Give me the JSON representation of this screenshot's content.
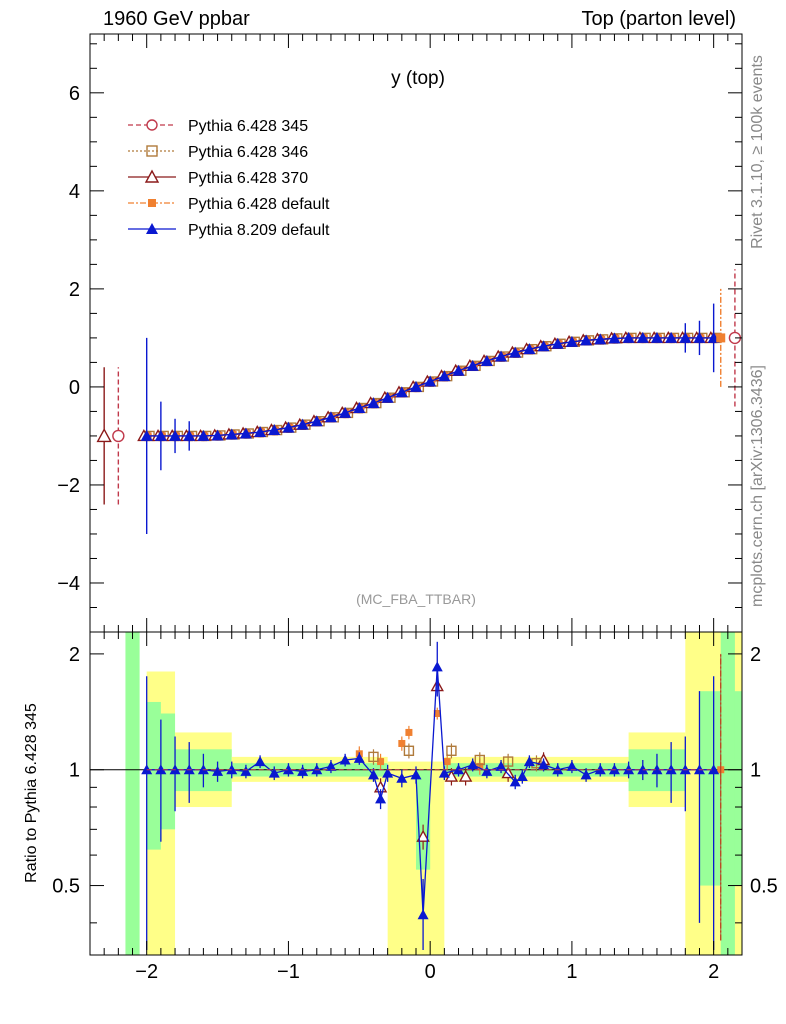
{
  "header": {
    "left": "1960 GeV ppbar",
    "right": "Top (parton level)"
  },
  "side_labels": {
    "rivet": "Rivet 3.1.10, ≥ 100k events",
    "mcplots": "mcplots.cern.ch [arXiv:1306.3436]"
  },
  "chart_data": {
    "type": "line",
    "title": "y (top)",
    "analysis_tag": "(MC_FBA_TTBAR)",
    "xlabel": "",
    "ylabel": "",
    "ratio_ylabel": "Ratio to Pythia 6.428 345",
    "xlim": [
      -2.4,
      2.2
    ],
    "ylim": [
      -5.0,
      7.2
    ],
    "ratio_ylim": [
      0.33,
      2.28
    ],
    "x_ticks": [
      "−2",
      "−1",
      "0",
      "1",
      "2"
    ],
    "y_ticks": [
      "−4",
      "−2",
      "0",
      "2",
      "4",
      "6"
    ],
    "ratio_y_ticks": [
      "0.5",
      "1",
      "2"
    ],
    "legend": [
      {
        "name": "Pythia 6.428 345",
        "color": "#c0394b",
        "marker": "open-circle",
        "dash": "dashed"
      },
      {
        "name": "Pythia 6.428 346",
        "color": "#b07a3b",
        "marker": "open-square",
        "dash": "dotted"
      },
      {
        "name": "Pythia 6.428 370",
        "color": "#8b1a1a",
        "marker": "open-triangle",
        "dash": "solid"
      },
      {
        "name": "Pythia 6.428 default",
        "color": "#f08030",
        "marker": "filled-square",
        "dash": "dashdot"
      },
      {
        "name": "Pythia 8.209 default",
        "color": "#0a18d0",
        "marker": "filled-triangle",
        "dash": "solid"
      }
    ],
    "x": [
      -2.3,
      -2.2,
      -2.1,
      -2.0,
      -1.9,
      -1.8,
      -1.7,
      -1.6,
      -1.5,
      -1.4,
      -1.3,
      -1.2,
      -1.1,
      -1.0,
      -0.9,
      -0.8,
      -0.7,
      -0.6,
      -0.5,
      -0.4,
      -0.3,
      -0.2,
      -0.1,
      0.0,
      0.1,
      0.2,
      0.3,
      0.4,
      0.5,
      0.6,
      0.7,
      0.8,
      0.9,
      1.0,
      1.1,
      1.2,
      1.3,
      1.4,
      1.5,
      1.6,
      1.7,
      1.8,
      1.9,
      2.0,
      2.1
    ],
    "series": [
      {
        "name": "Pythia 8.209 default",
        "x": [
          -2.0,
          -1.9,
          -1.8,
          -1.7,
          -1.6,
          -1.5,
          -1.4,
          -1.3,
          -1.2,
          -1.1,
          -1.0,
          -0.9,
          -0.8,
          -0.7,
          -0.6,
          -0.5,
          -0.4,
          -0.3,
          -0.2,
          -0.1,
          0.0,
          0.1,
          0.2,
          0.3,
          0.4,
          0.5,
          0.6,
          0.7,
          0.8,
          0.9,
          1.0,
          1.1,
          1.2,
          1.3,
          1.4,
          1.5,
          1.6,
          1.7,
          1.8,
          1.9,
          2.0
        ],
        "y": [
          -1.0,
          -1.0,
          -1.0,
          -1.0,
          -1.0,
          -0.99,
          -0.97,
          -0.95,
          -0.92,
          -0.88,
          -0.83,
          -0.77,
          -0.7,
          -0.62,
          -0.53,
          -0.43,
          -0.33,
          -0.22,
          -0.11,
          0.0,
          0.11,
          0.22,
          0.33,
          0.43,
          0.53,
          0.62,
          0.7,
          0.77,
          0.83,
          0.88,
          0.92,
          0.95,
          0.97,
          0.99,
          1.0,
          1.0,
          1.0,
          1.0,
          1.0,
          1.0,
          1.0
        ]
      }
    ],
    "edge_points": [
      {
        "name": "Pythia 6.428 370",
        "x": -2.3,
        "y": -1.0,
        "err": 1.4
      },
      {
        "name": "Pythia 6.428 345",
        "x": -2.2,
        "y": -1.0,
        "err": 1.4
      },
      {
        "name": "Pythia 6.428 default",
        "x": 2.05,
        "y": 1.0,
        "err": 1.0
      },
      {
        "name": "Pythia 6.428 345",
        "x": 2.15,
        "y": 1.0,
        "err": 1.4
      }
    ],
    "ratio_series": [
      {
        "name": "Pythia 8.209 default",
        "x": [
          -2.0,
          -1.9,
          -1.8,
          -1.7,
          -1.6,
          -1.5,
          -1.4,
          -1.3,
          -1.2,
          -1.1,
          -1.0,
          -0.9,
          -0.8,
          -0.7,
          -0.6,
          -0.5,
          -0.4,
          -0.35,
          -0.3,
          -0.2,
          -0.1,
          -0.05,
          0.05,
          0.1,
          0.2,
          0.3,
          0.4,
          0.5,
          0.6,
          0.65,
          0.7,
          0.8,
          0.9,
          1.0,
          1.1,
          1.2,
          1.3,
          1.4,
          1.5,
          1.6,
          1.7,
          1.8,
          1.9,
          2.0
        ],
        "y": [
          1.0,
          1.0,
          1.0,
          1.0,
          1.0,
          0.99,
          1.0,
          0.99,
          1.05,
          0.98,
          1.0,
          0.99,
          1.0,
          1.02,
          1.06,
          1.07,
          0.97,
          0.84,
          0.98,
          0.95,
          0.97,
          0.42,
          1.85,
          0.98,
          1.0,
          1.03,
          0.99,
          1.02,
          0.93,
          0.96,
          1.05,
          1.03,
          1.0,
          1.02,
          0.97,
          1.0,
          1.0,
          1.0,
          1.0,
          1.0,
          1.0,
          1.0,
          1.0,
          1.0
        ]
      }
    ],
    "ratio_others": [
      {
        "name": "Pythia 6.428 370",
        "x": [
          -0.35,
          -0.05,
          0.05,
          0.15,
          0.25,
          0.55,
          0.8
        ],
        "y": [
          0.9,
          0.67,
          1.65,
          0.96,
          0.96,
          0.98,
          1.06
        ]
      },
      {
        "name": "Pythia 6.428 default",
        "x": [
          -0.5,
          -0.35,
          -0.2,
          -0.15,
          0.05,
          0.12,
          0.35,
          2.05
        ],
        "y": [
          1.1,
          1.05,
          1.17,
          1.25,
          1.4,
          1.05,
          1.02,
          1.0
        ]
      },
      {
        "name": "Pythia 6.428 346",
        "x": [
          -0.4,
          -0.15,
          0.15,
          0.35,
          0.55,
          0.75
        ],
        "y": [
          1.08,
          1.12,
          1.12,
          1.06,
          1.05,
          1.04
        ]
      }
    ]
  }
}
